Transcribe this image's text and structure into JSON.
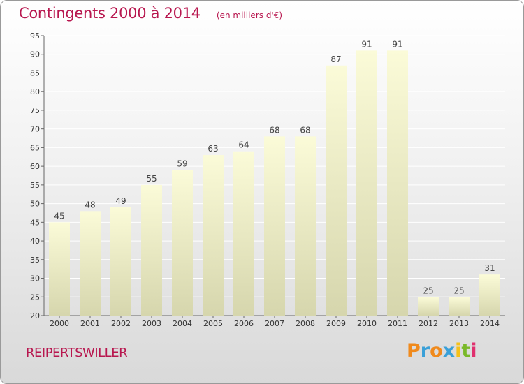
{
  "header": {
    "title": "Contingents 2000 à 2014",
    "subtitle": "(en milliers d'€)"
  },
  "footer": {
    "town": "REIPERTSWILLER",
    "logo": {
      "letters": [
        "P",
        "r",
        "o",
        "x",
        "i",
        "t",
        "i"
      ],
      "colors": [
        "#f08a1c",
        "#3aa0d8",
        "#f08a1c",
        "#3aa0d8",
        "#f5c11a",
        "#7ab929",
        "#e0306e"
      ]
    }
  },
  "colors": {
    "accent": "#b8174f",
    "bar_light": "#fbfbd8",
    "bar_dark": "#d6d6ad"
  },
  "chart_data": {
    "type": "bar",
    "categories": [
      "2000",
      "2001",
      "2002",
      "2003",
      "2004",
      "2005",
      "2006",
      "2007",
      "2008",
      "2009",
      "2010",
      "2011",
      "2012",
      "2013",
      "2014"
    ],
    "values": [
      45,
      48,
      49,
      55,
      59,
      63,
      64,
      68,
      68,
      87,
      91,
      91,
      25,
      25,
      31
    ],
    "ylim": [
      20,
      95
    ],
    "yticks": [
      20,
      25,
      30,
      35,
      40,
      45,
      50,
      55,
      60,
      65,
      70,
      75,
      80,
      85,
      90,
      95
    ],
    "grid": true,
    "legend": "none"
  }
}
